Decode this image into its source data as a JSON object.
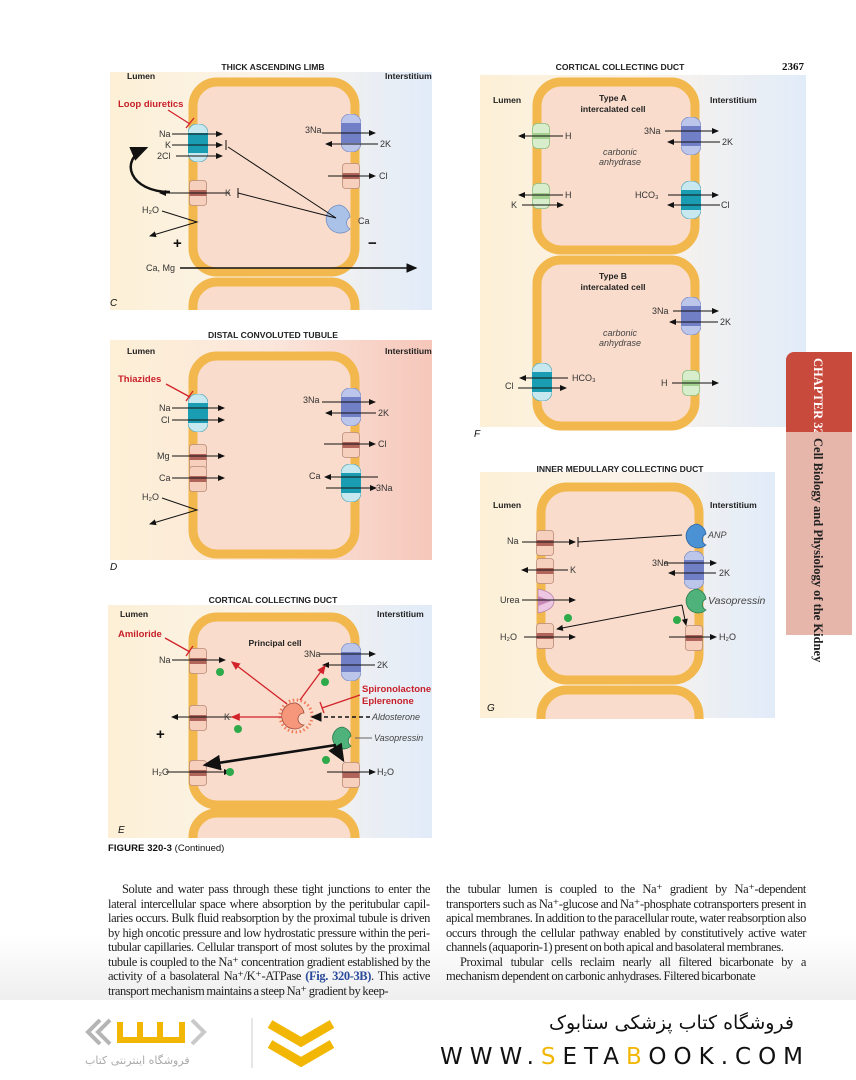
{
  "page_number": "2367",
  "chapter_tab": {
    "chapter": "CHAPTER 320",
    "title": "Cell Biology and Physiology of the Kidney",
    "colors": {
      "chapter_bg": "#c84a3d",
      "title_bg": "#e7b6ab"
    }
  },
  "figure": {
    "caption_label": "FIGURE 320-3",
    "caption_note": "(Continued)",
    "lumen": "Lumen",
    "interstitium": "Interstitium",
    "panel_c": {
      "letter": "C",
      "title": "THICK ASCENDING LIMB",
      "drug": "Loop diuretics",
      "na": "Na",
      "k": "K",
      "cl2": "2Cl",
      "k2": "K",
      "h2o": "H₂O",
      "plus": "+",
      "minus": "−",
      "na3": "3Na",
      "k_2": "2K",
      "cl": "Cl",
      "ca": "Ca",
      "camg": "Ca, Mg"
    },
    "panel_d": {
      "letter": "D",
      "title": "DISTAL CONVOLUTED TUBULE",
      "drug": "Thiazides",
      "na": "Na",
      "cl": "Cl",
      "mg": "Mg",
      "ca": "Ca",
      "h2o": "H₂O",
      "na3": "3Na",
      "k2": "2K",
      "cl_out": "Cl",
      "ca_out": "Ca",
      "na3_in": "3Na"
    },
    "panel_e": {
      "letter": "E",
      "title": "CORTICAL COLLECTING DUCT",
      "cell": "Principal cell",
      "drug": "Amiloride",
      "na": "Na",
      "k": "K",
      "plus": "+",
      "h2o": "H₂O",
      "na3": "3Na",
      "k2": "2K",
      "drug2_line1": "Spironolactone",
      "drug2_line2": "Eplerenone",
      "aldosterone": "Aldosterone",
      "vasopressin": "Vasopressin",
      "h2o_out": "H₂O",
      "stimulate": "+"
    },
    "panel_f": {
      "letter": "F",
      "title": "CORTICAL COLLECTING DUCT",
      "cell_a_line1": "Type A",
      "cell_a_line2": "intercalated cell",
      "ca_line1": "carbonic",
      "ca_line2": "anhydrase",
      "h": "H",
      "h2": "H",
      "k": "K",
      "na3": "3Na",
      "k2": "2K",
      "hco3": "HCO₃",
      "cl": "Cl",
      "cell_b_line1": "Type B",
      "cell_b_line2": "intercalated cell",
      "b_na3": "3Na",
      "b_k2": "2K",
      "b_cl": "Cl",
      "b_hco3": "HCO₃",
      "b_h": "H"
    },
    "panel_g": {
      "letter": "G",
      "title": "INNER MEDULLARY COLLECTING DUCT",
      "na": "Na",
      "k": "K",
      "urea": "Urea",
      "h2o": "H₂O",
      "anp": "ANP",
      "na3": "3Na",
      "k2": "2K",
      "vasopressin": "Vasopressin",
      "h2o_out": "H₂O"
    }
  },
  "body_text": {
    "left_before_ref": "Solute and water pass through these tight junctions to enter the lateral intercellular space where absorption by the peritubular capil­laries occurs. Bulk fluid reabsorption by the proximal tubule is driven by high oncotic pressure and low hydrostatic pressure within the peri­tubular capillaries. Cellular transport of most solutes by the proximal tubule is coupled to the Na⁺ concentration gradient established by the activity of a basolateral Na⁺/K⁺-ATPase ",
    "left_ref": "(Fig. 320-3B)",
    "left_after_ref": ". This active transport mechanism maintains a steep Na⁺ gradient by keep-",
    "right_p1": "the tubular lumen is coupled to the Na⁺ gradient by Na⁺-dependent transporters such as Na⁺-glucose and Na⁺-phosphate cotransporters present in apical membranes. In addition to the paracellular route, water reabsorption also occurs through the cellular pathway enabled by constitutively active water channels (aquaporin-1) present on both apical and basolateral membranes.",
    "right_p2": "Proximal tubular cells reclaim nearly all filtered bicarbonate by a mechanism dependent on carbonic anhydrases. Filtered bicarbonate"
  },
  "watermark": {
    "store_name": "فروشگاه کتاب پزشکی ستابوک",
    "url_parts": [
      "WWW.",
      "S",
      "ETA",
      "B",
      "OOK.COM"
    ],
    "logo_text": "ستابوک",
    "logo_subtitle": "فروشگاه اینترنتی کتاب",
    "accent": "#f2b705"
  }
}
